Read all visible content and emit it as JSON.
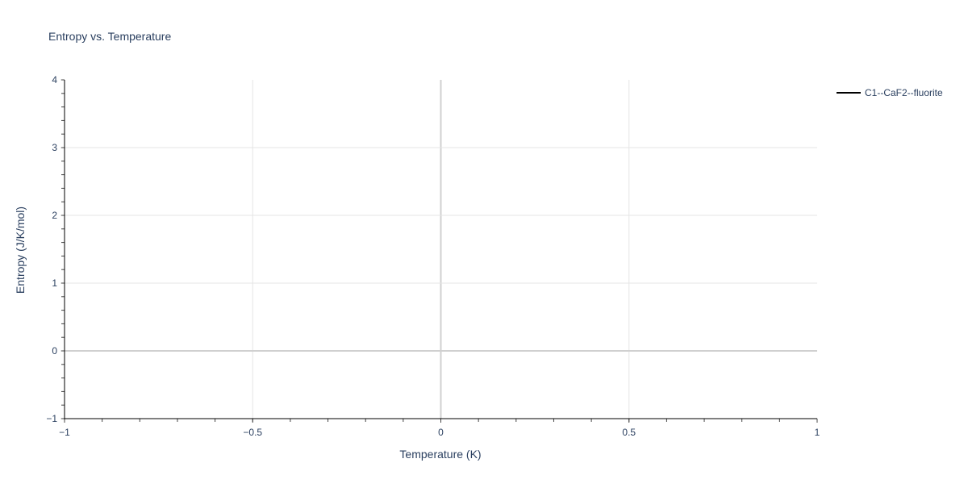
{
  "chart_data": {
    "type": "line",
    "title": "Entropy vs. Temperature",
    "xlabel": "Temperature (K)",
    "ylabel": "Entropy (J/K/mol)",
    "xlim": [
      -1,
      1
    ],
    "ylim": [
      -1,
      4
    ],
    "x_ticks": [
      -1,
      -0.5,
      0,
      0.5,
      1
    ],
    "x_tick_labels": [
      "−1",
      "−0.5",
      "0",
      "0.5",
      "1"
    ],
    "y_ticks": [
      -1,
      0,
      1,
      2,
      3,
      4
    ],
    "y_tick_labels": [
      "−1",
      "0",
      "1",
      "2",
      "3",
      "4"
    ],
    "x_minor_step": 0.1,
    "y_minor_step": 0.2,
    "grid": true,
    "legend_position": "top-right",
    "series": [
      {
        "name": "C1--CaF2--fluorite",
        "color": "#000000",
        "x": [],
        "y": []
      }
    ]
  }
}
